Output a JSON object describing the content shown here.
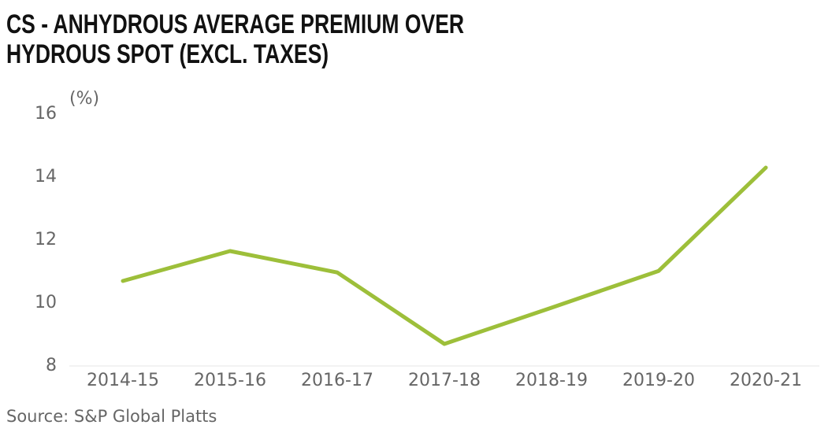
{
  "chart_data": {
    "type": "line",
    "title": "CS - ANHYDROUS AVERAGE PREMIUM OVER HYDROUS SPOT (EXCL. TAXES)",
    "y_label": "(%)",
    "source": "Source: S&P Global Platts",
    "categories": [
      "2014-15",
      "2015-16",
      "2016-17",
      "2017-18",
      "2018-19",
      "2019-20",
      "2020-21"
    ],
    "values": [
      10.7,
      11.65,
      10.97,
      8.7,
      9.85,
      11.02,
      14.3
    ],
    "color": "#9dbf3a",
    "ylim": [
      8,
      16
    ],
    "yticks": [
      8,
      10,
      12,
      14,
      16
    ],
    "grid": false
  }
}
